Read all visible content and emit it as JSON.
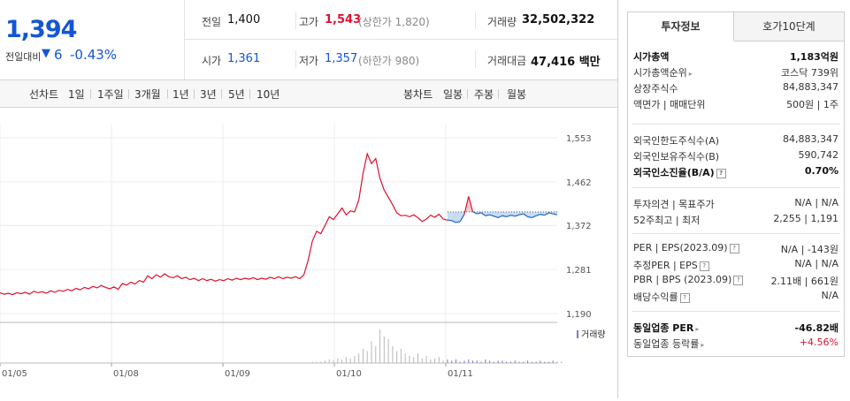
{
  "summary": {
    "price": "1,394",
    "change_label": "전일대비",
    "change_arrow": "▼",
    "change_value": "6",
    "change_rate": "-0.43%"
  },
  "quote": {
    "prev_close_label": "전일",
    "prev_close": "1,400",
    "high_label": "고가",
    "high": "1,543",
    "upper_limit": "(상한가 1,820)",
    "volume_label": "거래량",
    "volume": "32,502,322",
    "open_label": "시가",
    "open": "1,361",
    "low_label": "저가",
    "low": "1,357",
    "lower_limit": "(하한가 980)",
    "amount_label": "거래대금",
    "amount": "47,416 백만"
  },
  "toolbar": {
    "line_chart_label": "선차트",
    "periods": [
      "1일",
      "1주일",
      "3개월",
      "1년",
      "3년",
      "5년",
      "10년"
    ],
    "active_period": "1주일",
    "candle_label": "봉차트",
    "candles": [
      "일봉",
      "주봉",
      "월봉"
    ]
  },
  "chart_data": {
    "type": "line",
    "x_tick_labels": [
      "01/05",
      "01/08",
      "01/09",
      "01/10",
      "01/11"
    ],
    "y_tick_labels": [
      "1,553",
      "1,462",
      "1,372",
      "1,281",
      "1,190"
    ],
    "ylim": [
      1190,
      1553
    ],
    "reference_line": 1400,
    "volume_legend": "거래량",
    "price_series": [
      1233,
      1230,
      1232,
      1229,
      1233,
      1231,
      1234,
      1230,
      1236,
      1233,
      1235,
      1232,
      1237,
      1234,
      1238,
      1236,
      1240,
      1237,
      1242,
      1239,
      1244,
      1241,
      1246,
      1243,
      1248,
      1244,
      1241,
      1245,
      1240,
      1252,
      1249,
      1255,
      1251,
      1258,
      1255,
      1268,
      1262,
      1270,
      1265,
      1272,
      1266,
      1264,
      1268,
      1262,
      1265,
      1260,
      1263,
      1258,
      1262,
      1258,
      1261,
      1257,
      1260,
      1258,
      1262,
      1259,
      1263,
      1260,
      1263,
      1261,
      1264,
      1260,
      1263,
      1261,
      1265,
      1262,
      1266,
      1262,
      1265,
      1263,
      1266,
      1262,
      1270,
      1300,
      1340,
      1360,
      1355,
      1372,
      1390,
      1384,
      1396,
      1408,
      1394,
      1402,
      1400,
      1425,
      1480,
      1520,
      1500,
      1510,
      1470,
      1445,
      1430,
      1415,
      1398,
      1392,
      1393,
      1390,
      1394,
      1388,
      1380,
      1385,
      1393,
      1389,
      1395,
      1385,
      1383,
      1382,
      1378,
      1380,
      1395,
      1432,
      1400,
      1396,
      1398,
      1392,
      1394,
      1391,
      1388,
      1392,
      1390,
      1393,
      1391,
      1394,
      1396,
      1390,
      1388,
      1392,
      1395,
      1393,
      1398,
      1396,
      1394
    ],
    "volume_bars": [
      0,
      0,
      0,
      0,
      0,
      0,
      0,
      0,
      0,
      0,
      0,
      0,
      0,
      0,
      0,
      0,
      0,
      0,
      0,
      0,
      0,
      0,
      0,
      0,
      0,
      0,
      0,
      0,
      0,
      0,
      0,
      0,
      0,
      0,
      0,
      0,
      0,
      0,
      0,
      0,
      0,
      0,
      0,
      0,
      0,
      0,
      0,
      0,
      0,
      0,
      0,
      0,
      0,
      0,
      0,
      0,
      0,
      0,
      0,
      0,
      0,
      0,
      0,
      0,
      0,
      0,
      0,
      0,
      0,
      0,
      0,
      0,
      0,
      0,
      1,
      1,
      1,
      2,
      3,
      2,
      4,
      3,
      5,
      4,
      6,
      8,
      12,
      10,
      18,
      14,
      28,
      22,
      20,
      14,
      10,
      12,
      8,
      6,
      5,
      8,
      4,
      6,
      3,
      4,
      5,
      2,
      3,
      2,
      3,
      1,
      2,
      3,
      2,
      2,
      1,
      3,
      2,
      1,
      2,
      2,
      1,
      1,
      2,
      1,
      1,
      2,
      1,
      1,
      2,
      1,
      1,
      2,
      1,
      1
    ],
    "colors": {
      "up": "#e0112e",
      "down": "#1d64c4",
      "up_fill": "#f7c9cd",
      "down_fill": "#c9dbf3",
      "volume": "#8a74b8",
      "volume_gray": "#b8b8b8"
    }
  },
  "invest": {
    "tabs": [
      "투자정보",
      "호가10단계"
    ],
    "active_tab": "투자정보",
    "rows1": [
      {
        "label": "시가총액",
        "value": "1,183억원",
        "bold": true
      },
      {
        "label": "시가총액순위",
        "value": "코스닥 739위",
        "arrow": true
      },
      {
        "label": "상장주식수",
        "value": "84,883,347"
      },
      {
        "label": "액면가 | 매매단위",
        "value": "500원 | 1주"
      }
    ],
    "rows2": [
      {
        "label": "외국인한도주식수(A)",
        "value": "84,883,347"
      },
      {
        "label": "외국인보유주식수(B)",
        "value": "590,742"
      },
      {
        "label": "외국인소진율(B/A)",
        "value": "0.70%",
        "bold": true,
        "q": true
      }
    ],
    "rows3": [
      {
        "label": "투자의견 | 목표주가",
        "value": "N/A | N/A"
      },
      {
        "label": "52주최고 | 최저",
        "value": "2,255 | 1,191"
      }
    ],
    "rows4": [
      {
        "label": "PER | EPS(2023.09)",
        "value": "N/A | -143원",
        "q": true
      },
      {
        "label": "추정PER | EPS",
        "value": "N/A | N/A",
        "q": true
      },
      {
        "label": "PBR | BPS (2023.09)",
        "value": "2.11배 | 661원",
        "q": true
      },
      {
        "label": "배당수익률",
        "value": "N/A",
        "q": true
      }
    ],
    "rows5": [
      {
        "label": "동일업종 PER",
        "value": "-46.82배",
        "arrow": true,
        "bold": true
      },
      {
        "label": "동일업종 등락률",
        "value": "+4.56%",
        "arrow": true,
        "red": true
      }
    ]
  }
}
